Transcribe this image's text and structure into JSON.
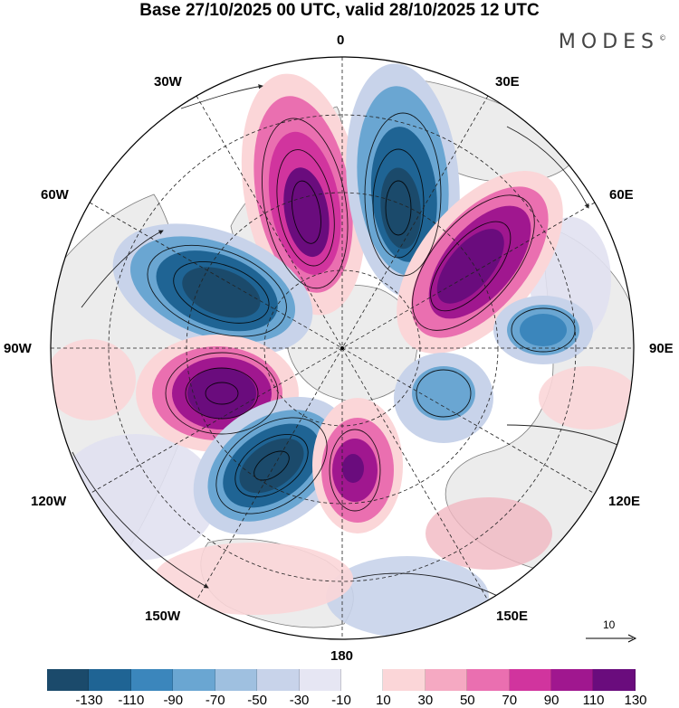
{
  "title": "Base 27/10/2025 00 UTC, valid 28/10/2025 12 UTC",
  "brand": "MODES",
  "brand_mark": "©",
  "longitude_labels": {
    "lon_0": "0",
    "lon_30e": "30E",
    "lon_60e": "60E",
    "lon_90e": "90E",
    "lon_120e": "120E",
    "lon_150e": "150E",
    "lon_180": "180",
    "lon_150w": "150W",
    "lon_120w": "120W",
    "lon_90w": "90W",
    "lon_60w": "60W",
    "lon_30w": "30W"
  },
  "reference_vector_label": "10",
  "colorbar": {
    "colors": [
      "#1b4a6b",
      "#1f6494",
      "#3b86bc",
      "#6aa6d2",
      "#9fc0e0",
      "#c8d3ea",
      "#e6e6f3",
      "#ffffff",
      "#fbd6d8",
      "#f5a9c2",
      "#ea6fb0",
      "#d1349e",
      "#a0178f",
      "#6a0c7d"
    ],
    "ticks": [
      "-130",
      "-110",
      "-90",
      "-70",
      "-50",
      "-30",
      "-10",
      "10",
      "30",
      "50",
      "70",
      "90",
      "110",
      "130"
    ]
  },
  "palette": {
    "land": "#ececec",
    "coast": "#7c7c7c",
    "blue_dark": "#1b4a6b",
    "blue_mid": "#3b86bc",
    "blue_light": "#9fc0e0",
    "blue_pale": "#e1e1f1",
    "pink_pale": "#fbd6d8",
    "pink_mid": "#ea6fb0",
    "purple_dark": "#6a0c7d"
  }
}
